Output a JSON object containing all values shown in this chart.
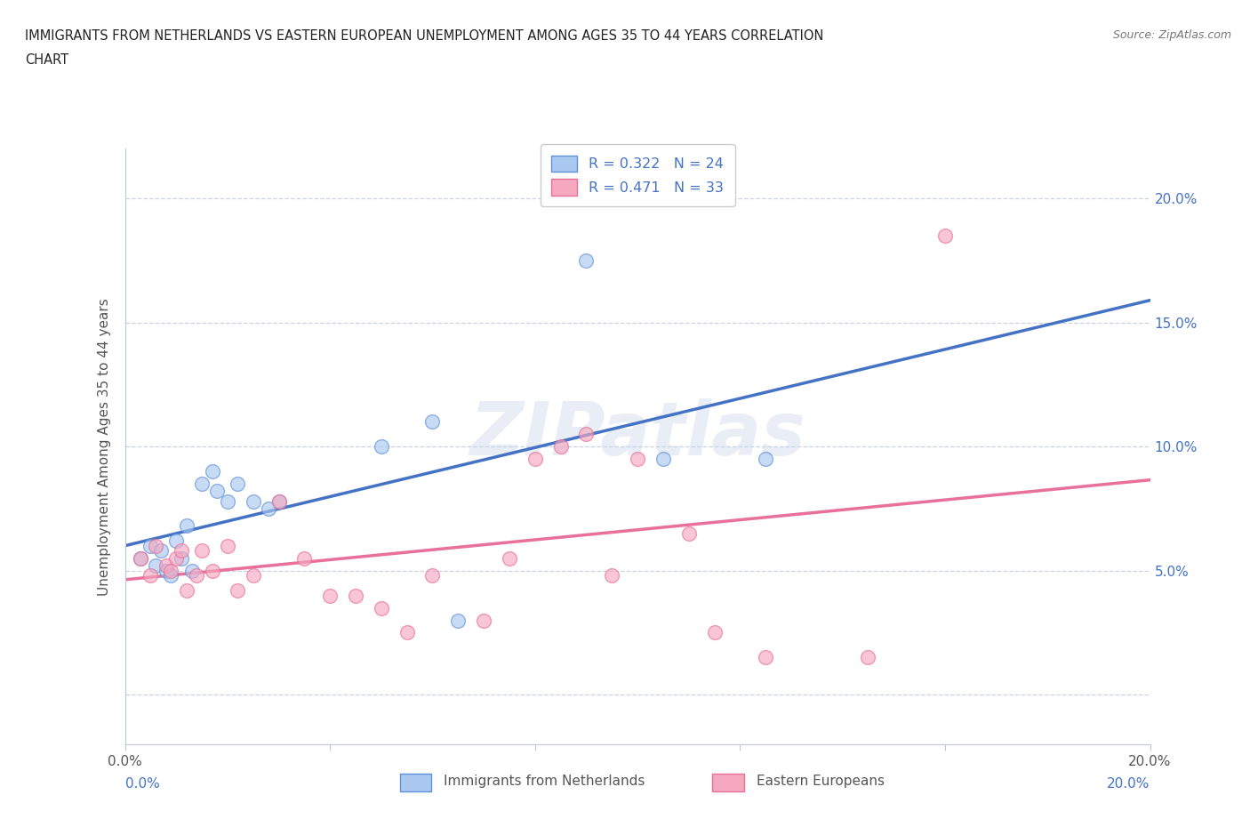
{
  "title_line1": "IMMIGRANTS FROM NETHERLANDS VS EASTERN EUROPEAN UNEMPLOYMENT AMONG AGES 35 TO 44 YEARS CORRELATION",
  "title_line2": "CHART",
  "source": "Source: ZipAtlas.com",
  "ylabel": "Unemployment Among Ages 35 to 44 years",
  "xlim": [
    0.0,
    0.2
  ],
  "ylim": [
    -0.02,
    0.22
  ],
  "x_tick_positions": [
    0.0,
    0.04,
    0.08,
    0.12,
    0.16,
    0.2
  ],
  "x_tick_labels": [
    "0.0%",
    "",
    "",
    "",
    "",
    "20.0%"
  ],
  "y_tick_positions": [
    0.0,
    0.05,
    0.1,
    0.15,
    0.2
  ],
  "y_tick_labels_left": [
    "",
    "",
    "",
    "",
    ""
  ],
  "y_tick_labels_right": [
    "",
    "5.0%",
    "10.0%",
    "15.0%",
    "20.0%"
  ],
  "legend_r_color": "#4472c4",
  "legend_n_color": "#e84040",
  "watermark": "ZIPatlas",
  "blue_scatter_x": [
    0.003,
    0.005,
    0.006,
    0.007,
    0.008,
    0.009,
    0.01,
    0.011,
    0.012,
    0.013,
    0.015,
    0.017,
    0.018,
    0.02,
    0.022,
    0.025,
    0.028,
    0.03,
    0.05,
    0.06,
    0.065,
    0.09,
    0.105,
    0.125
  ],
  "blue_scatter_y": [
    0.055,
    0.06,
    0.052,
    0.058,
    0.05,
    0.048,
    0.062,
    0.055,
    0.068,
    0.05,
    0.085,
    0.09,
    0.082,
    0.078,
    0.085,
    0.078,
    0.075,
    0.078,
    0.1,
    0.11,
    0.03,
    0.175,
    0.095,
    0.095
  ],
  "pink_scatter_x": [
    0.003,
    0.005,
    0.006,
    0.008,
    0.009,
    0.01,
    0.011,
    0.012,
    0.014,
    0.015,
    0.017,
    0.02,
    0.022,
    0.025,
    0.03,
    0.035,
    0.04,
    0.045,
    0.05,
    0.055,
    0.06,
    0.07,
    0.075,
    0.08,
    0.085,
    0.09,
    0.095,
    0.1,
    0.11,
    0.115,
    0.125,
    0.145,
    0.16
  ],
  "pink_scatter_y": [
    0.055,
    0.048,
    0.06,
    0.052,
    0.05,
    0.055,
    0.058,
    0.042,
    0.048,
    0.058,
    0.05,
    0.06,
    0.042,
    0.048,
    0.078,
    0.055,
    0.04,
    0.04,
    0.035,
    0.025,
    0.048,
    0.03,
    0.055,
    0.095,
    0.1,
    0.105,
    0.048,
    0.095,
    0.065,
    0.025,
    0.015,
    0.015,
    0.185
  ],
  "blue_line_color": "#4472c4",
  "pink_line_color": "#e8709a",
  "blue_dot_color": "#aac8f0",
  "blue_dot_edge": "#6090d8",
  "pink_dot_color": "#f5a8c0",
  "pink_dot_edge": "#e87098",
  "dot_size": 130,
  "dot_alpha": 0.65,
  "background_color": "#ffffff",
  "grid_color": "#c8d4e4",
  "spine_color": "#c0c8d8",
  "bottom_legend_labels": [
    "Immigrants from Netherlands",
    "Eastern Europeans"
  ],
  "legend_box_label1": "R = 0.322   N = 24",
  "legend_box_label2": "R = 0.471   N = 33"
}
